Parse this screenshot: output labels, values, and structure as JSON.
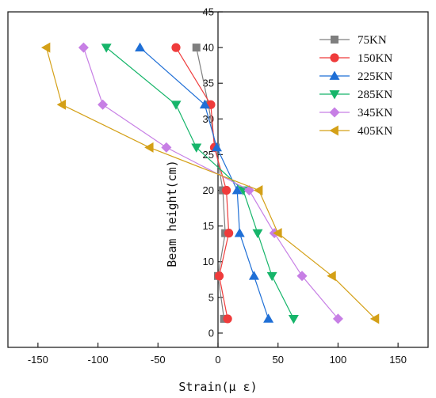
{
  "chart_data": {
    "type": "line",
    "xlabel": "Strain(μ ε)",
    "ylabel": "Beam height(cm)",
    "xlim": [
      -175,
      175
    ],
    "ylim": [
      -2,
      45
    ],
    "x_ticks": [
      -150,
      -100,
      -50,
      0,
      50,
      100,
      150
    ],
    "y_ticks": [
      0,
      5,
      10,
      15,
      20,
      25,
      30,
      35,
      40,
      45
    ],
    "legend_position": "top-right",
    "grid": false,
    "series": [
      {
        "name": "75KN",
        "color": "#7f7f7f",
        "marker": "square",
        "points": [
          [
            -18,
            40
          ],
          [
            -8,
            32
          ],
          [
            -2,
            26
          ],
          [
            4,
            20
          ],
          [
            6,
            14
          ],
          [
            0,
            8
          ],
          [
            5,
            2
          ]
        ]
      },
      {
        "name": "150KN",
        "color": "#ef3b3b",
        "marker": "circle",
        "points": [
          [
            -35,
            40
          ],
          [
            -6,
            32
          ],
          [
            -3,
            26
          ],
          [
            7,
            20
          ],
          [
            9,
            14
          ],
          [
            1,
            8
          ],
          [
            8,
            2
          ]
        ]
      },
      {
        "name": "225KN",
        "color": "#1f6fd6",
        "marker": "triangle-up",
        "points": [
          [
            -65,
            40
          ],
          [
            -11,
            32
          ],
          [
            -1,
            26
          ],
          [
            16,
            20
          ],
          [
            18,
            14
          ],
          [
            30,
            8
          ],
          [
            42,
            2
          ]
        ]
      },
      {
        "name": "285KN",
        "color": "#16b56a",
        "marker": "triangle-down",
        "points": [
          [
            -93,
            40
          ],
          [
            -35,
            32
          ],
          [
            -18,
            26
          ],
          [
            21,
            20
          ],
          [
            33,
            14
          ],
          [
            45,
            8
          ],
          [
            63,
            2
          ]
        ]
      },
      {
        "name": "345KN",
        "color": "#c77fe5",
        "marker": "diamond",
        "points": [
          [
            -112,
            40
          ],
          [
            -96,
            32
          ],
          [
            -43,
            26
          ],
          [
            26,
            20
          ],
          [
            47,
            14
          ],
          [
            70,
            8
          ],
          [
            100,
            2
          ]
        ]
      },
      {
        "name": "405KN",
        "color": "#d4a017",
        "marker": "triangle-left",
        "points": [
          [
            -143,
            40
          ],
          [
            -130,
            32
          ],
          [
            -57,
            26
          ],
          [
            34,
            20
          ],
          [
            50,
            14
          ],
          [
            95,
            8
          ],
          [
            131,
            2
          ]
        ]
      }
    ]
  }
}
